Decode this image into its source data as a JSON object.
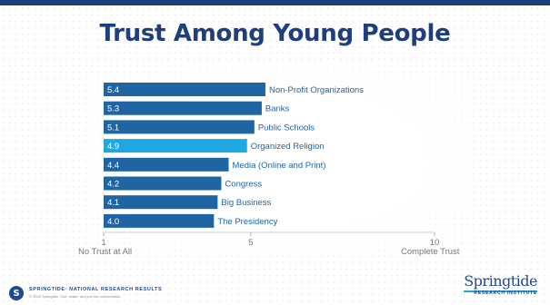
{
  "title": "Trust Among Young People",
  "chart_data": {
    "type": "bar",
    "orientation": "horizontal",
    "categories": [
      "Non-Profit Organizations",
      "Banks",
      "Public Schools",
      "Organized Religion",
      "Media (Online and Print)",
      "Congress",
      "Big Business",
      "The Presidency"
    ],
    "values": [
      5.4,
      5.3,
      5.1,
      4.9,
      4.4,
      4.2,
      4.1,
      4.0
    ],
    "value_labels": [
      "5.4",
      "5.3",
      "5.1",
      "4.9",
      "4.4",
      "4.2",
      "4.1",
      "4.0"
    ],
    "highlight_index": 3,
    "colors": {
      "bar": "#1f64a3",
      "highlight": "#1ea7e1",
      "category_label": "#1f64a3"
    },
    "xlim": [
      1,
      10
    ],
    "ticks": [
      "1",
      "5",
      "10"
    ],
    "tick_values": [
      1,
      5,
      10
    ],
    "axis_min_label": "No Trust at All",
    "axis_max_label": "Complete Trust",
    "grid": false,
    "legend": "none"
  },
  "footer": {
    "badge": "S",
    "line1": "SPRINGTIDE· NATIONAL RESEARCH RESULTS",
    "line2": "© 2020 Springtide. Cite, share, and join the conversation."
  },
  "logo": {
    "name": "Springtide",
    "subtitle": "RESEARCH INSTITUTE"
  }
}
